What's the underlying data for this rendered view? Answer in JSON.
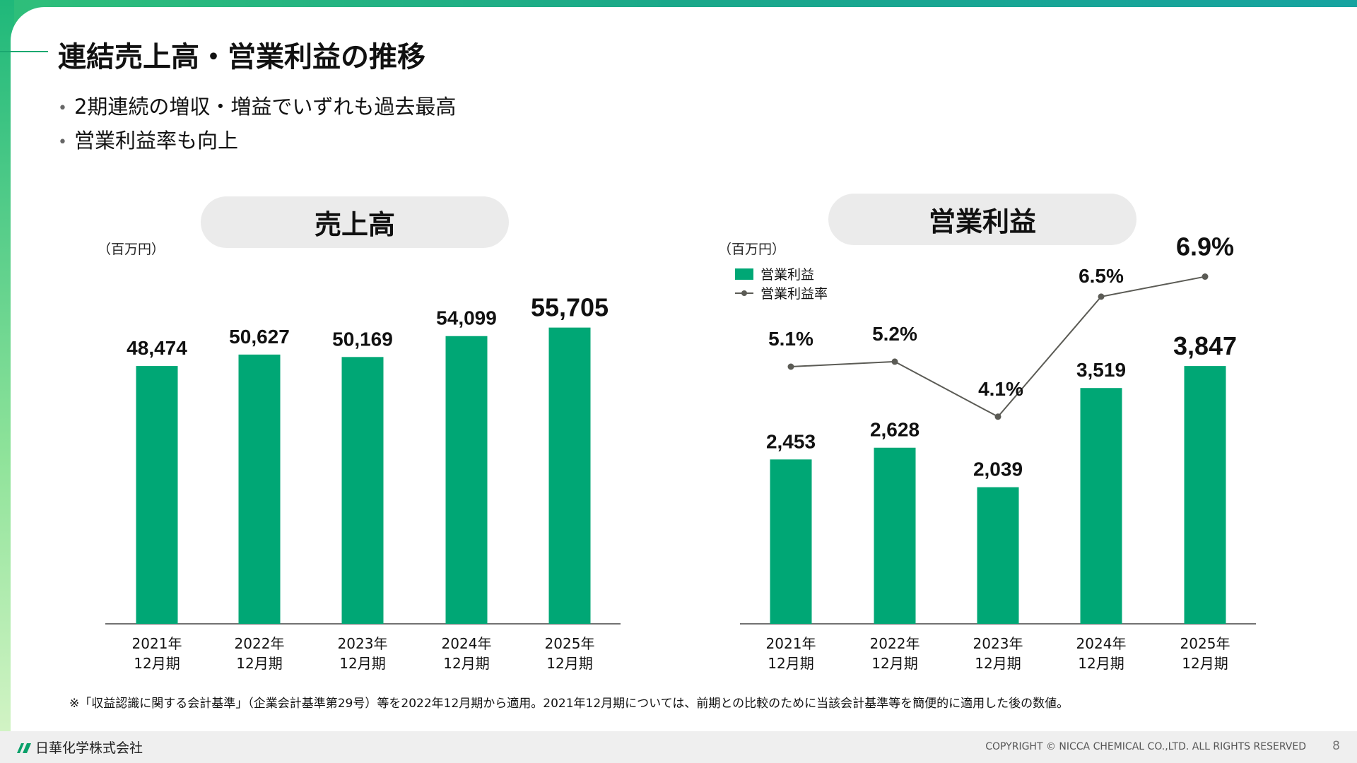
{
  "header": {
    "title": "連結売上高・営業利益の推移"
  },
  "bullets": [
    "2期連続の増収・増益でいずれも過去最高",
    "営業利益率も向上"
  ],
  "chart_data": [
    {
      "type": "bar",
      "title": "売上高",
      "unit_label": "（百万円）",
      "categories": [
        [
          "2021年",
          "12月期"
        ],
        [
          "2022年",
          "12月期"
        ],
        [
          "2023年",
          "12月期"
        ],
        [
          "2024年",
          "12月期"
        ],
        [
          "2025年",
          "12月期"
        ]
      ],
      "values": [
        48474,
        50627,
        50169,
        54099,
        55705
      ],
      "value_labels": [
        "48,474",
        "50,627",
        "50,169",
        "54,099",
        "55,705"
      ],
      "color": "#00a775",
      "grid": false
    },
    {
      "type": "bar+line",
      "title": "営業利益",
      "unit_label": "（百万円）",
      "legend": [
        "営業利益",
        "営業利益率"
      ],
      "legend_placement": "top-left",
      "categories": [
        [
          "2021年",
          "12月期"
        ],
        [
          "2022年",
          "12月期"
        ],
        [
          "2023年",
          "12月期"
        ],
        [
          "2024年",
          "12月期"
        ],
        [
          "2025年",
          "12月期"
        ]
      ],
      "series": [
        {
          "name": "営業利益",
          "type": "bar",
          "values": [
            2453,
            2628,
            2039,
            3519,
            3847
          ],
          "labels": [
            "2,453",
            "2,628",
            "2,039",
            "3,519",
            "3,847"
          ],
          "color": "#00a775"
        },
        {
          "name": "営業利益率",
          "type": "line",
          "values": [
            5.1,
            5.2,
            4.1,
            6.5,
            6.9
          ],
          "labels": [
            "5.1%",
            "5.2%",
            "4.1%",
            "6.5%",
            "6.9%"
          ],
          "color": "#5b5b55"
        }
      ],
      "grid": false
    }
  ],
  "footnote": "※「収益認識に関する会計基準」（企業会計基準第29号）等を2022年12月期から適用。2021年12月期については、前期との比較のために当該会計基準等を簡便的に適用した後の数値。",
  "footer": {
    "company": "日華化学株式会社",
    "copyright": "COPYRIGHT © NICCA CHEMICAL CO.,LTD. ALL RIGHTS RESERVED",
    "page": "8"
  }
}
